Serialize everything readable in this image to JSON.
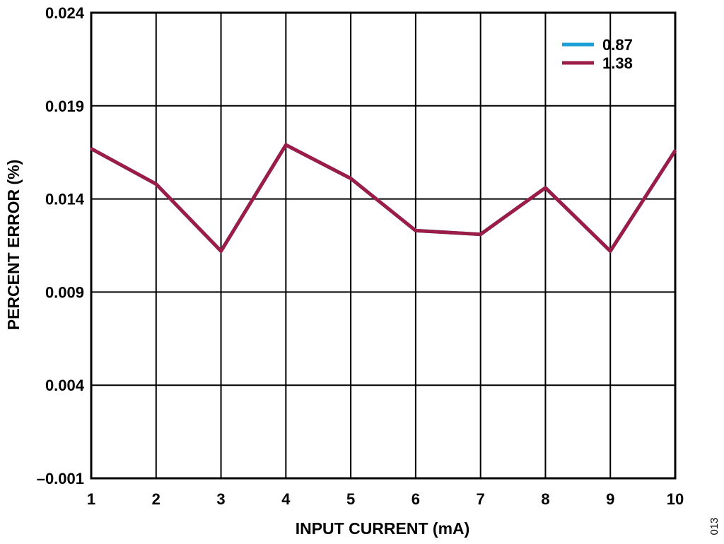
{
  "chart_data": {
    "type": "line",
    "xlabel": "INPUT CURRENT (mA)",
    "ylabel": "PERCENT ERROR (%)",
    "xlim": [
      1,
      10
    ],
    "ylim": [
      -0.001,
      0.024
    ],
    "xticks": [
      1,
      2,
      3,
      4,
      5,
      6,
      7,
      8,
      9,
      10
    ],
    "yticks": [
      -0.001,
      0.004,
      0.009,
      0.014,
      0.019,
      0.024
    ],
    "ytick_labels": [
      "–0.001",
      "0.004",
      "0.009",
      "0.014",
      "0.019",
      "0.024"
    ],
    "grid": true,
    "legend_position": "top-right",
    "x": [
      1,
      2,
      3,
      4,
      5,
      6,
      7,
      8,
      9,
      10
    ],
    "series": [
      {
        "name": "0.87",
        "color": "#1a9fd6",
        "values": [
          0.0167,
          0.0148,
          0.0112,
          0.0169,
          0.0151,
          0.0123,
          0.0121,
          0.0146,
          0.0112,
          0.0166
        ]
      },
      {
        "name": "1.38",
        "color": "#9b1c47",
        "values": [
          0.0167,
          0.0148,
          0.0112,
          0.0169,
          0.0151,
          0.0123,
          0.0121,
          0.0146,
          0.0112,
          0.0166
        ]
      }
    ],
    "figure_id": "013"
  }
}
